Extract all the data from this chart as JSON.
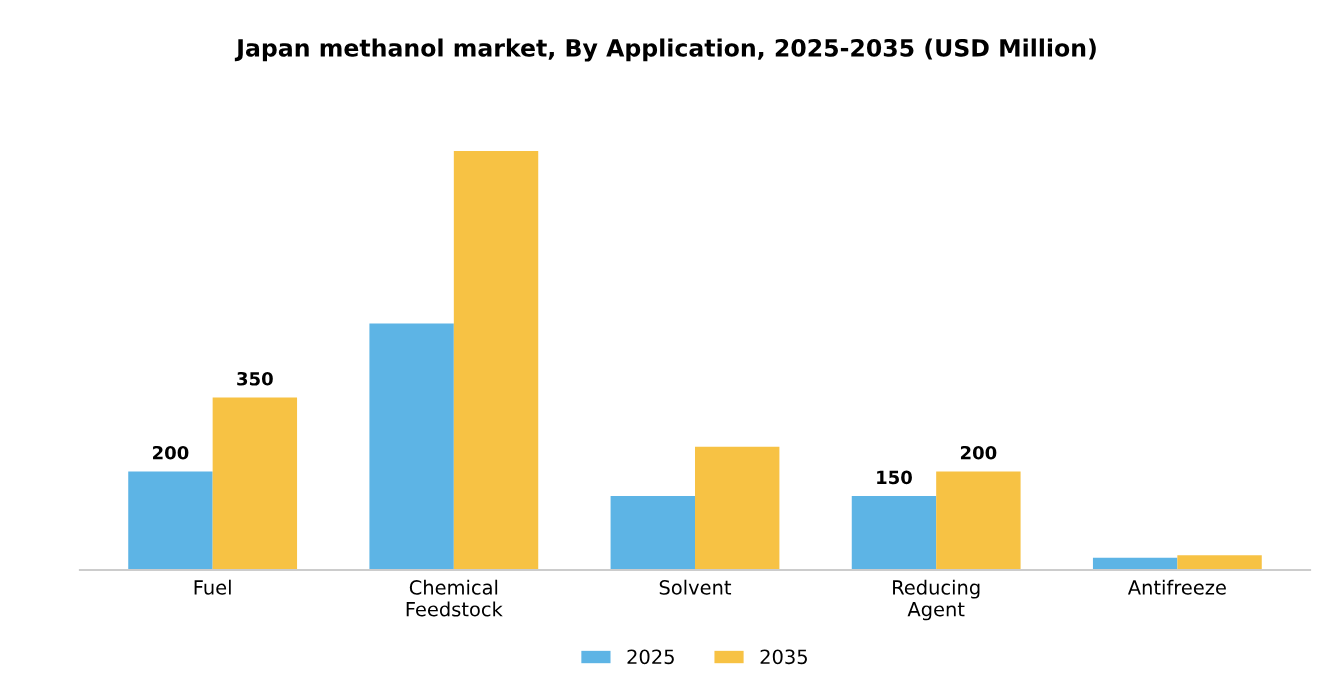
{
  "chart_data": {
    "type": "bar",
    "title": "Japan methanol market, By Application, 2025-2035 (USD Million)",
    "categories": [
      "Fuel",
      "Chemical\nFeedstock",
      "Solvent",
      "Reducing\nAgent",
      "Antifreeze"
    ],
    "series": [
      {
        "name": "2025",
        "color": "#5db4e5",
        "values": [
          200,
          500,
          150,
          150,
          25
        ],
        "value_labels": [
          "200",
          null,
          null,
          "150",
          null
        ]
      },
      {
        "name": "2035",
        "color": "#f7c244",
        "values": [
          350,
          850,
          250,
          200,
          30
        ],
        "value_labels": [
          "350",
          null,
          null,
          "200",
          null
        ]
      }
    ],
    "legend": "bottom",
    "grid": false
  }
}
